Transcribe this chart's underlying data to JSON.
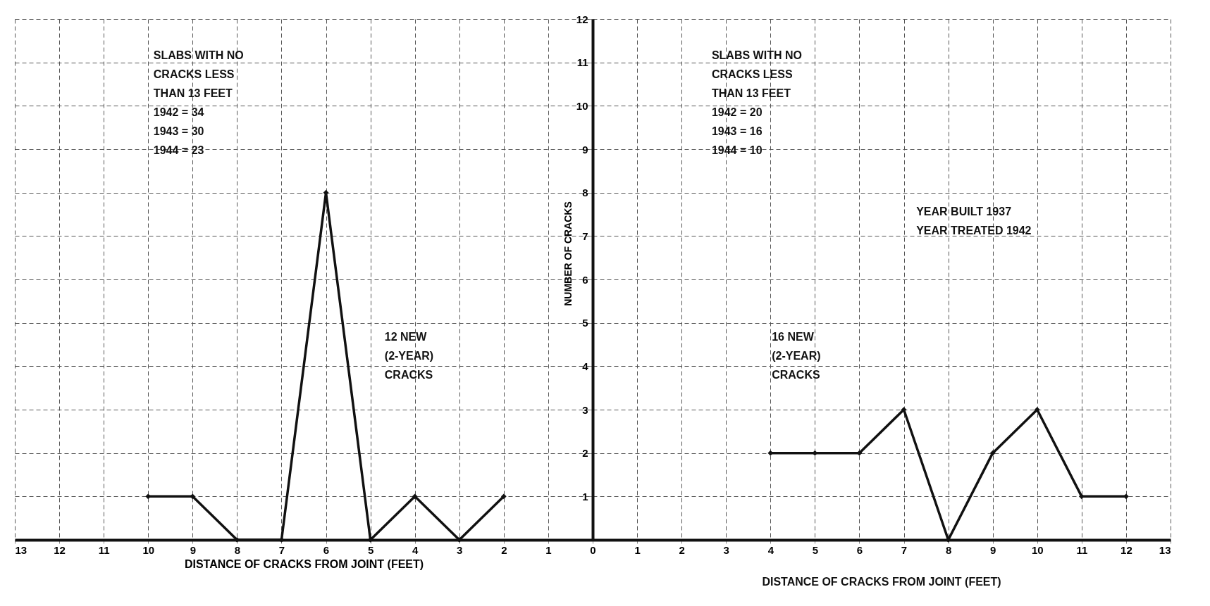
{
  "chart_data": {
    "type": "line",
    "xlabel": "DISTANCE OF CRACKS FROM JOINT (FEET)",
    "ylabel": "NUMBER OF CRACKS",
    "xlim": [
      -13,
      13
    ],
    "ylim": [
      0,
      12
    ],
    "xticks": [
      {
        "value": -13,
        "label": "13"
      },
      {
        "value": -12,
        "label": "12"
      },
      {
        "value": -11,
        "label": "11"
      },
      {
        "value": -10,
        "label": "10"
      },
      {
        "value": -9,
        "label": "9"
      },
      {
        "value": -8,
        "label": "8"
      },
      {
        "value": -7,
        "label": "7"
      },
      {
        "value": -6,
        "label": "6"
      },
      {
        "value": -5,
        "label": "5"
      },
      {
        "value": -4,
        "label": "4"
      },
      {
        "value": -3,
        "label": "3"
      },
      {
        "value": -2,
        "label": "2"
      },
      {
        "value": -1,
        "label": "1"
      },
      0,
      1,
      2,
      3,
      4,
      5,
      6,
      7,
      8,
      9,
      10,
      11,
      12,
      13
    ],
    "yticks": [
      1,
      2,
      3,
      4,
      5,
      6,
      7,
      8,
      9,
      10,
      11,
      12
    ],
    "grid": true,
    "marker": "diamond",
    "line_style": "solid",
    "series": [
      {
        "color": "#111111",
        "x": [
          -10,
          -9,
          -8,
          -7,
          -6,
          -5,
          -4,
          -3,
          -2
        ],
        "values": [
          1,
          1,
          0,
          0,
          8,
          0,
          1,
          0,
          1
        ]
      },
      {
        "color": "#111111",
        "x": [
          4,
          5,
          6,
          7,
          8,
          9,
          10,
          11,
          12
        ],
        "values": [
          2,
          2,
          2,
          3,
          0,
          2,
          3,
          1,
          1
        ]
      }
    ],
    "annotations": [
      "SLABS WITH NO\nCRACKS LESS\nTHAN 13 FEET\n1942 = 34\n1943 = 30\n1944 = 23",
      "SLABS WITH NO\nCRACKS LESS\nTHAN 13 FEET\n1942 = 20\n1943 = 16\n1944 = 10",
      "YEAR BUILT 1937\nYEAR TREATED 1942",
      "12 NEW\n(2-YEAR)\nCRACKS",
      "16 NEW\n(2-YEAR)\nCRACKS",
      "DISTANCE OF CRACKS FROM JOINT (FEET)"
    ]
  }
}
